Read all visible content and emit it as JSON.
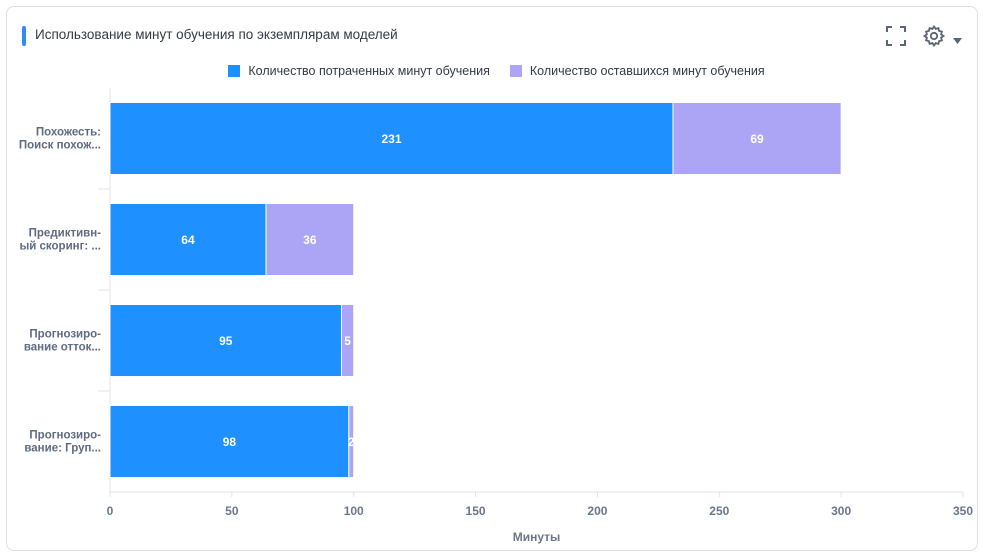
{
  "header": {
    "title": "Использование минут обучения по экземплярам моделей",
    "icons": [
      "fullscreen-icon",
      "gear-icon",
      "caret-down-icon"
    ]
  },
  "chart_data": {
    "type": "bar",
    "orientation": "horizontal",
    "stacked": true,
    "categories": [
      "Похожесть: Поиск похож...",
      "Предиктивный скоринг: ...",
      "Прогнозирование отток...",
      "Прогнозирование: Груп..."
    ],
    "category_lines": [
      [
        "Похожесть:",
        "Поиск похож..."
      ],
      [
        "Предиктивн-",
        "ый скоринг: ..."
      ],
      [
        "Прогнозиро-",
        "вание отток..."
      ],
      [
        "Прогнозиро-",
        "вание: Груп..."
      ]
    ],
    "series": [
      {
        "name": "Количество потраченных минут обучения",
        "values": [
          231,
          64,
          95,
          98
        ],
        "color": "#1e90ff"
      },
      {
        "name": "Количество оставшихся минут обучения",
        "values": [
          69,
          36,
          5,
          2
        ],
        "color": "#aca4f5"
      }
    ],
    "xlabel": "Минуты",
    "xlim": [
      0,
      350
    ],
    "xticks": [
      0,
      50,
      100,
      150,
      200,
      250,
      300,
      350
    ],
    "grid": false,
    "legend": "top-center"
  }
}
